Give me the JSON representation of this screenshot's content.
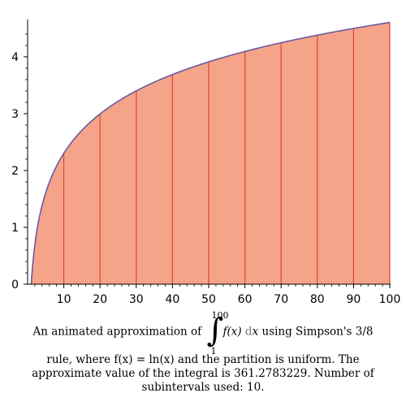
{
  "chart_data": {
    "type": "area",
    "function": "ln(x)",
    "x_range": [
      1,
      100
    ],
    "partition_x": [
      10,
      20,
      30,
      40,
      50,
      60,
      70,
      80,
      90
    ],
    "xlim": [
      0,
      100
    ],
    "ylim": [
      0,
      4.6
    ],
    "x_ticks": [
      10,
      20,
      30,
      40,
      50,
      60,
      70,
      80,
      90,
      100
    ],
    "y_ticks": [
      0,
      1,
      2,
      3,
      4
    ],
    "xlabel": "",
    "ylabel": "",
    "grid": false,
    "colors": {
      "fill": "#f5a48a",
      "curve": "#6a5aa0",
      "partition": "#e0442a",
      "axis": "#000000"
    }
  },
  "caption": {
    "line1_pre": "An animated approximation of ",
    "integral_upper": "100",
    "integral_lower": "1",
    "integrand": "f(x)",
    "differential_d": "d",
    "differential_var": "x",
    "line1_post": " using Simpson's 3/8",
    "line2": "rule, where f(x) = ln(x) and the partition is uniform.  The",
    "line3": "approximate value of the integral is 361.2783229.  Number of",
    "line4": "subintervals used: 10."
  }
}
